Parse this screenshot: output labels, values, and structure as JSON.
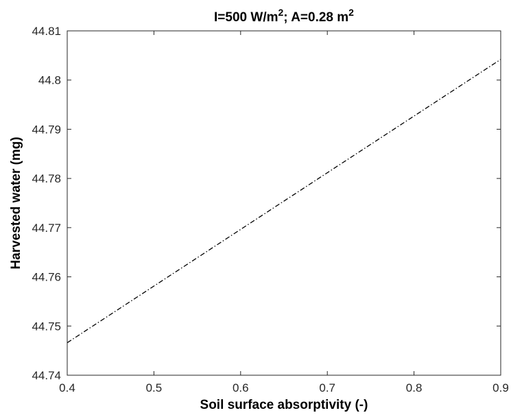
{
  "chart_data": {
    "type": "line",
    "title": {
      "prefix": "I=500 W/m",
      "sup1": "2",
      "middle": "; A=0.28 m",
      "sup2": "2"
    },
    "xlabel": "Soil surface absorptivity (-)",
    "ylabel": "Harvested water (mg)",
    "xlim": [
      0.4,
      0.9
    ],
    "ylim": [
      44.74,
      44.81
    ],
    "xticks": [
      "0.4",
      "0.5",
      "0.6",
      "0.7",
      "0.8",
      "0.9"
    ],
    "yticks": [
      "44.74",
      "44.75",
      "44.76",
      "44.77",
      "44.78",
      "44.79",
      "44.8",
      "44.81"
    ],
    "grid": false,
    "line_style": "dash-dot",
    "line_color": "#000000",
    "series": [
      {
        "x": [
          0.4,
          0.9
        ],
        "y": [
          44.7466,
          44.8042
        ]
      }
    ]
  }
}
